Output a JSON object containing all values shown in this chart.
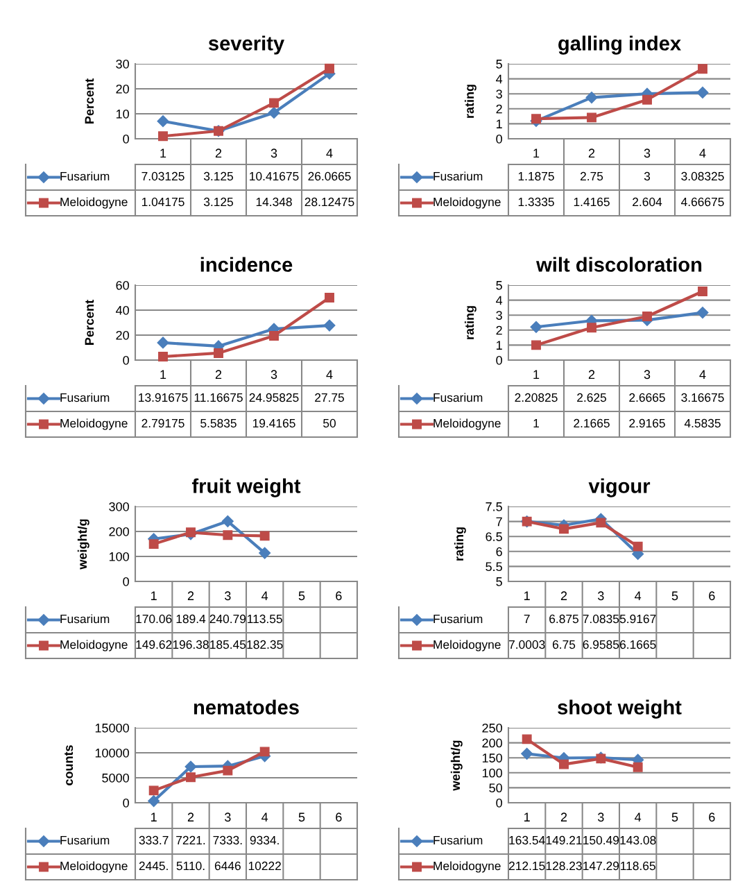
{
  "chart_data": [
    {
      "type": "line",
      "title": "severity",
      "ylabel": "Percent",
      "categories": [
        "1",
        "2",
        "3",
        "4"
      ],
      "ylim": [
        0,
        30
      ],
      "yticks": [
        0,
        10,
        20,
        30
      ],
      "grid": "y",
      "legend": "bottom left",
      "series": [
        {
          "name": "Fusarium",
          "color": "#4a7ebb",
          "marker": "diamond",
          "values": [
            7.03125,
            3.125,
            10.41675,
            26.0665
          ],
          "value_labels": [
            "7.03125",
            "3.125",
            "10.41675",
            "26.0665"
          ]
        },
        {
          "name": "Meloidogyne",
          "color": "#be4b48",
          "marker": "square",
          "values": [
            1.04175,
            3.125,
            14.348,
            28.12475
          ],
          "value_labels": [
            "1.04175",
            "3.125",
            "14.348",
            "28.12475"
          ]
        }
      ]
    },
    {
      "type": "line",
      "title": "galling index",
      "ylabel": "rating",
      "categories": [
        "1",
        "2",
        "3",
        "4"
      ],
      "ylim": [
        0,
        5
      ],
      "yticks": [
        0,
        1,
        2,
        3,
        4,
        5
      ],
      "grid": "y",
      "legend": "bottom left",
      "series": [
        {
          "name": "Fusarium",
          "color": "#4a7ebb",
          "marker": "diamond",
          "values": [
            1.1875,
            2.75,
            3,
            3.08325
          ],
          "value_labels": [
            "1.1875",
            "2.75",
            "3",
            "3.08325"
          ]
        },
        {
          "name": "Meloidogyne",
          "color": "#be4b48",
          "marker": "square",
          "values": [
            1.3335,
            1.4165,
            2.604,
            4.66675
          ],
          "value_labels": [
            "1.3335",
            "1.4165",
            "2.604",
            "4.66675"
          ]
        }
      ]
    },
    {
      "type": "line",
      "title": "incidence",
      "ylabel": "Percent",
      "categories": [
        "1",
        "2",
        "3",
        "4"
      ],
      "ylim": [
        0,
        60
      ],
      "yticks": [
        0,
        20,
        40,
        60
      ],
      "grid": "y",
      "legend": "bottom left",
      "series": [
        {
          "name": "Fusarium",
          "color": "#4a7ebb",
          "marker": "diamond",
          "values": [
            13.91675,
            11.16675,
            24.95825,
            27.75
          ],
          "value_labels": [
            "13.91675",
            "11.16675",
            "24.95825",
            "27.75"
          ]
        },
        {
          "name": "Meloidogyne",
          "color": "#be4b48",
          "marker": "square",
          "values": [
            2.79175,
            5.5835,
            19.4165,
            50
          ],
          "value_labels": [
            "2.79175",
            "5.5835",
            "19.4165",
            "50"
          ]
        }
      ]
    },
    {
      "type": "line",
      "title": "wilt discoloration",
      "ylabel": "rating",
      "categories": [
        "1",
        "2",
        "3",
        "4"
      ],
      "ylim": [
        0,
        5
      ],
      "yticks": [
        0,
        1,
        2,
        3,
        4,
        5
      ],
      "grid": "y",
      "legend": "bottom left",
      "series": [
        {
          "name": "Fusarium",
          "color": "#4a7ebb",
          "marker": "diamond",
          "values": [
            2.20825,
            2.625,
            2.6665,
            3.16675
          ],
          "value_labels": [
            "2.20825",
            "2.625",
            "2.6665",
            "3.16675"
          ]
        },
        {
          "name": "Meloidogyne",
          "color": "#be4b48",
          "marker": "square",
          "values": [
            1,
            2.1665,
            2.9165,
            4.5835
          ],
          "value_labels": [
            "1",
            "2.1665",
            "2.9165",
            "4.5835"
          ]
        }
      ]
    },
    {
      "type": "line",
      "title": "fruit weight",
      "ylabel": "weight/g",
      "categories": [
        "1",
        "2",
        "3",
        "4",
        "5",
        "6"
      ],
      "ylim": [
        0,
        300
      ],
      "yticks": [
        0,
        100,
        200,
        300
      ],
      "grid": "y",
      "legend": "bottom left",
      "series": [
        {
          "name": "Fusarium",
          "color": "#4a7ebb",
          "marker": "diamond",
          "values": [
            170.06,
            189.4,
            240.79,
            113.55,
            null,
            null
          ],
          "value_labels": [
            "170.06",
            "189.4",
            "240.79",
            "113.55",
            null,
            null
          ]
        },
        {
          "name": "Meloidogyne",
          "color": "#be4b48",
          "marker": "square",
          "values": [
            149.62,
            196.38,
            185.45,
            182.35,
            null,
            null
          ],
          "value_labels": [
            "149.62",
            "196.38",
            "185.45",
            "182.35",
            null,
            null
          ]
        }
      ]
    },
    {
      "type": "line",
      "title": "vigour",
      "ylabel": "rating",
      "categories": [
        "1",
        "2",
        "3",
        "4",
        "5",
        "6"
      ],
      "ylim": [
        5,
        7.5
      ],
      "yticks": [
        5,
        5.5,
        6,
        6.5,
        7,
        7.5
      ],
      "grid": "y",
      "legend": "bottom left",
      "series": [
        {
          "name": "Fusarium",
          "color": "#4a7ebb",
          "marker": "diamond",
          "values": [
            7,
            6.875,
            7.0835,
            5.9167,
            null,
            null
          ],
          "value_labels": [
            "7",
            "6.875",
            "7.0835",
            "5.9167",
            null,
            null
          ]
        },
        {
          "name": "Meloidogyne",
          "color": "#be4b48",
          "marker": "square",
          "values": [
            7.0003,
            6.75,
            6.9585,
            6.1665,
            null,
            null
          ],
          "value_labels": [
            "7.0003",
            "6.75",
            "6.9585",
            "6.1665",
            null,
            null
          ]
        }
      ]
    },
    {
      "type": "line",
      "title": "nematodes",
      "ylabel": "counts",
      "categories": [
        "1",
        "2",
        "3",
        "4",
        "5",
        "6"
      ],
      "ylim": [
        0,
        15000
      ],
      "yticks": [
        0,
        5000,
        10000,
        15000
      ],
      "grid": "y",
      "legend": "bottom left",
      "series": [
        {
          "name": "Fusarium",
          "color": "#4a7ebb",
          "marker": "diamond",
          "values": [
            333.7,
            7221,
            7333,
            9334,
            null,
            null
          ],
          "value_labels": [
            "333.7",
            "7221.",
            "7333.",
            "9334.",
            null,
            null
          ]
        },
        {
          "name": "Meloidogyne",
          "color": "#be4b48",
          "marker": "square",
          "values": [
            2445,
            5110,
            6446,
            10222,
            null,
            null
          ],
          "value_labels": [
            "2445.",
            "5110.",
            "6446",
            "10222",
            null,
            null
          ]
        }
      ]
    },
    {
      "type": "line",
      "title": "shoot weight",
      "ylabel": "weight/g",
      "categories": [
        "1",
        "2",
        "3",
        "4",
        "5",
        "6"
      ],
      "ylim": [
        0,
        250
      ],
      "yticks": [
        0,
        50,
        100,
        150,
        200,
        250
      ],
      "grid": "y",
      "legend": "bottom left",
      "series": [
        {
          "name": "Fusarium",
          "color": "#4a7ebb",
          "marker": "diamond",
          "values": [
            163.54,
            149.21,
            150.49,
            143.08,
            null,
            null
          ],
          "value_labels": [
            "163.54",
            "149.21",
            "150.49",
            "143.08",
            null,
            null
          ]
        },
        {
          "name": "Meloidogyne",
          "color": "#be4b48",
          "marker": "square",
          "values": [
            212.15,
            128.23,
            147.29,
            118.65,
            null,
            null
          ],
          "value_labels": [
            "212.15",
            "128.23",
            "147.29",
            "118.65",
            null,
            null
          ]
        }
      ]
    }
  ]
}
